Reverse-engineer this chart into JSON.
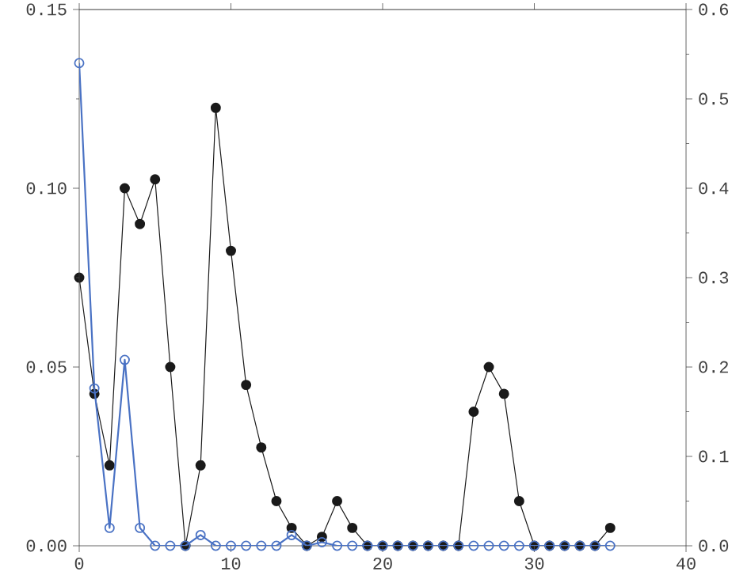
{
  "chart_data": {
    "type": "line",
    "marker": "circle",
    "x": [
      0,
      1,
      2,
      3,
      4,
      5,
      6,
      7,
      8,
      9,
      10,
      11,
      12,
      13,
      14,
      15,
      16,
      17,
      18,
      19,
      20,
      21,
      22,
      23,
      24,
      25,
      26,
      27,
      28,
      29,
      30,
      31,
      32,
      33,
      34,
      35
    ],
    "series": [
      {
        "color": "#1a1a1a",
        "axis": "y2",
        "values": [
          0.3,
          0.17,
          0.09,
          0.4,
          0.36,
          0.41,
          0.2,
          0,
          0.09,
          0.49,
          0.33,
          0.18,
          0.11,
          0.05,
          0.02,
          0,
          0.01,
          0.05,
          0.02,
          0,
          0,
          0,
          0,
          0,
          0,
          0,
          0.15,
          0.2,
          0.17,
          0.05,
          0,
          0,
          0,
          0,
          0,
          0.02
        ]
      },
      {
        "color": "#4a72c4",
        "values": [
          0.135,
          0.044,
          0.005,
          0.052,
          0.005,
          0,
          0,
          0,
          0.003,
          0,
          0,
          0,
          0,
          0,
          0.003,
          0,
          0.001,
          0,
          0,
          0,
          0,
          0,
          0,
          0,
          0,
          0,
          0,
          0,
          0,
          0,
          0,
          0,
          0,
          0,
          0,
          0
        ]
      }
    ],
    "xlim": [
      0,
      40
    ],
    "xticks": [
      0,
      10,
      20,
      30,
      40
    ],
    "ylim": [
      0,
      0.15
    ],
    "yticks": [
      {
        "value": 0,
        "label": "0.00"
      },
      {
        "value": 0.05,
        "label": "0.05"
      },
      {
        "value": 0.1,
        "label": "0.10"
      },
      {
        "value": 0.15,
        "label": "0.15"
      }
    ],
    "y2lim": [
      0,
      0.6
    ],
    "y2ticks": [
      {
        "value": 0,
        "label": "0.0"
      },
      {
        "value": 0.1,
        "label": "0.1"
      },
      {
        "value": 0.2,
        "label": "0.2"
      },
      {
        "value": 0.3,
        "label": "0.3"
      },
      {
        "value": 0.4,
        "label": "0.4"
      },
      {
        "value": 0.5,
        "label": "0.5"
      },
      {
        "value": 0.6,
        "label": "0.6"
      }
    ]
  }
}
